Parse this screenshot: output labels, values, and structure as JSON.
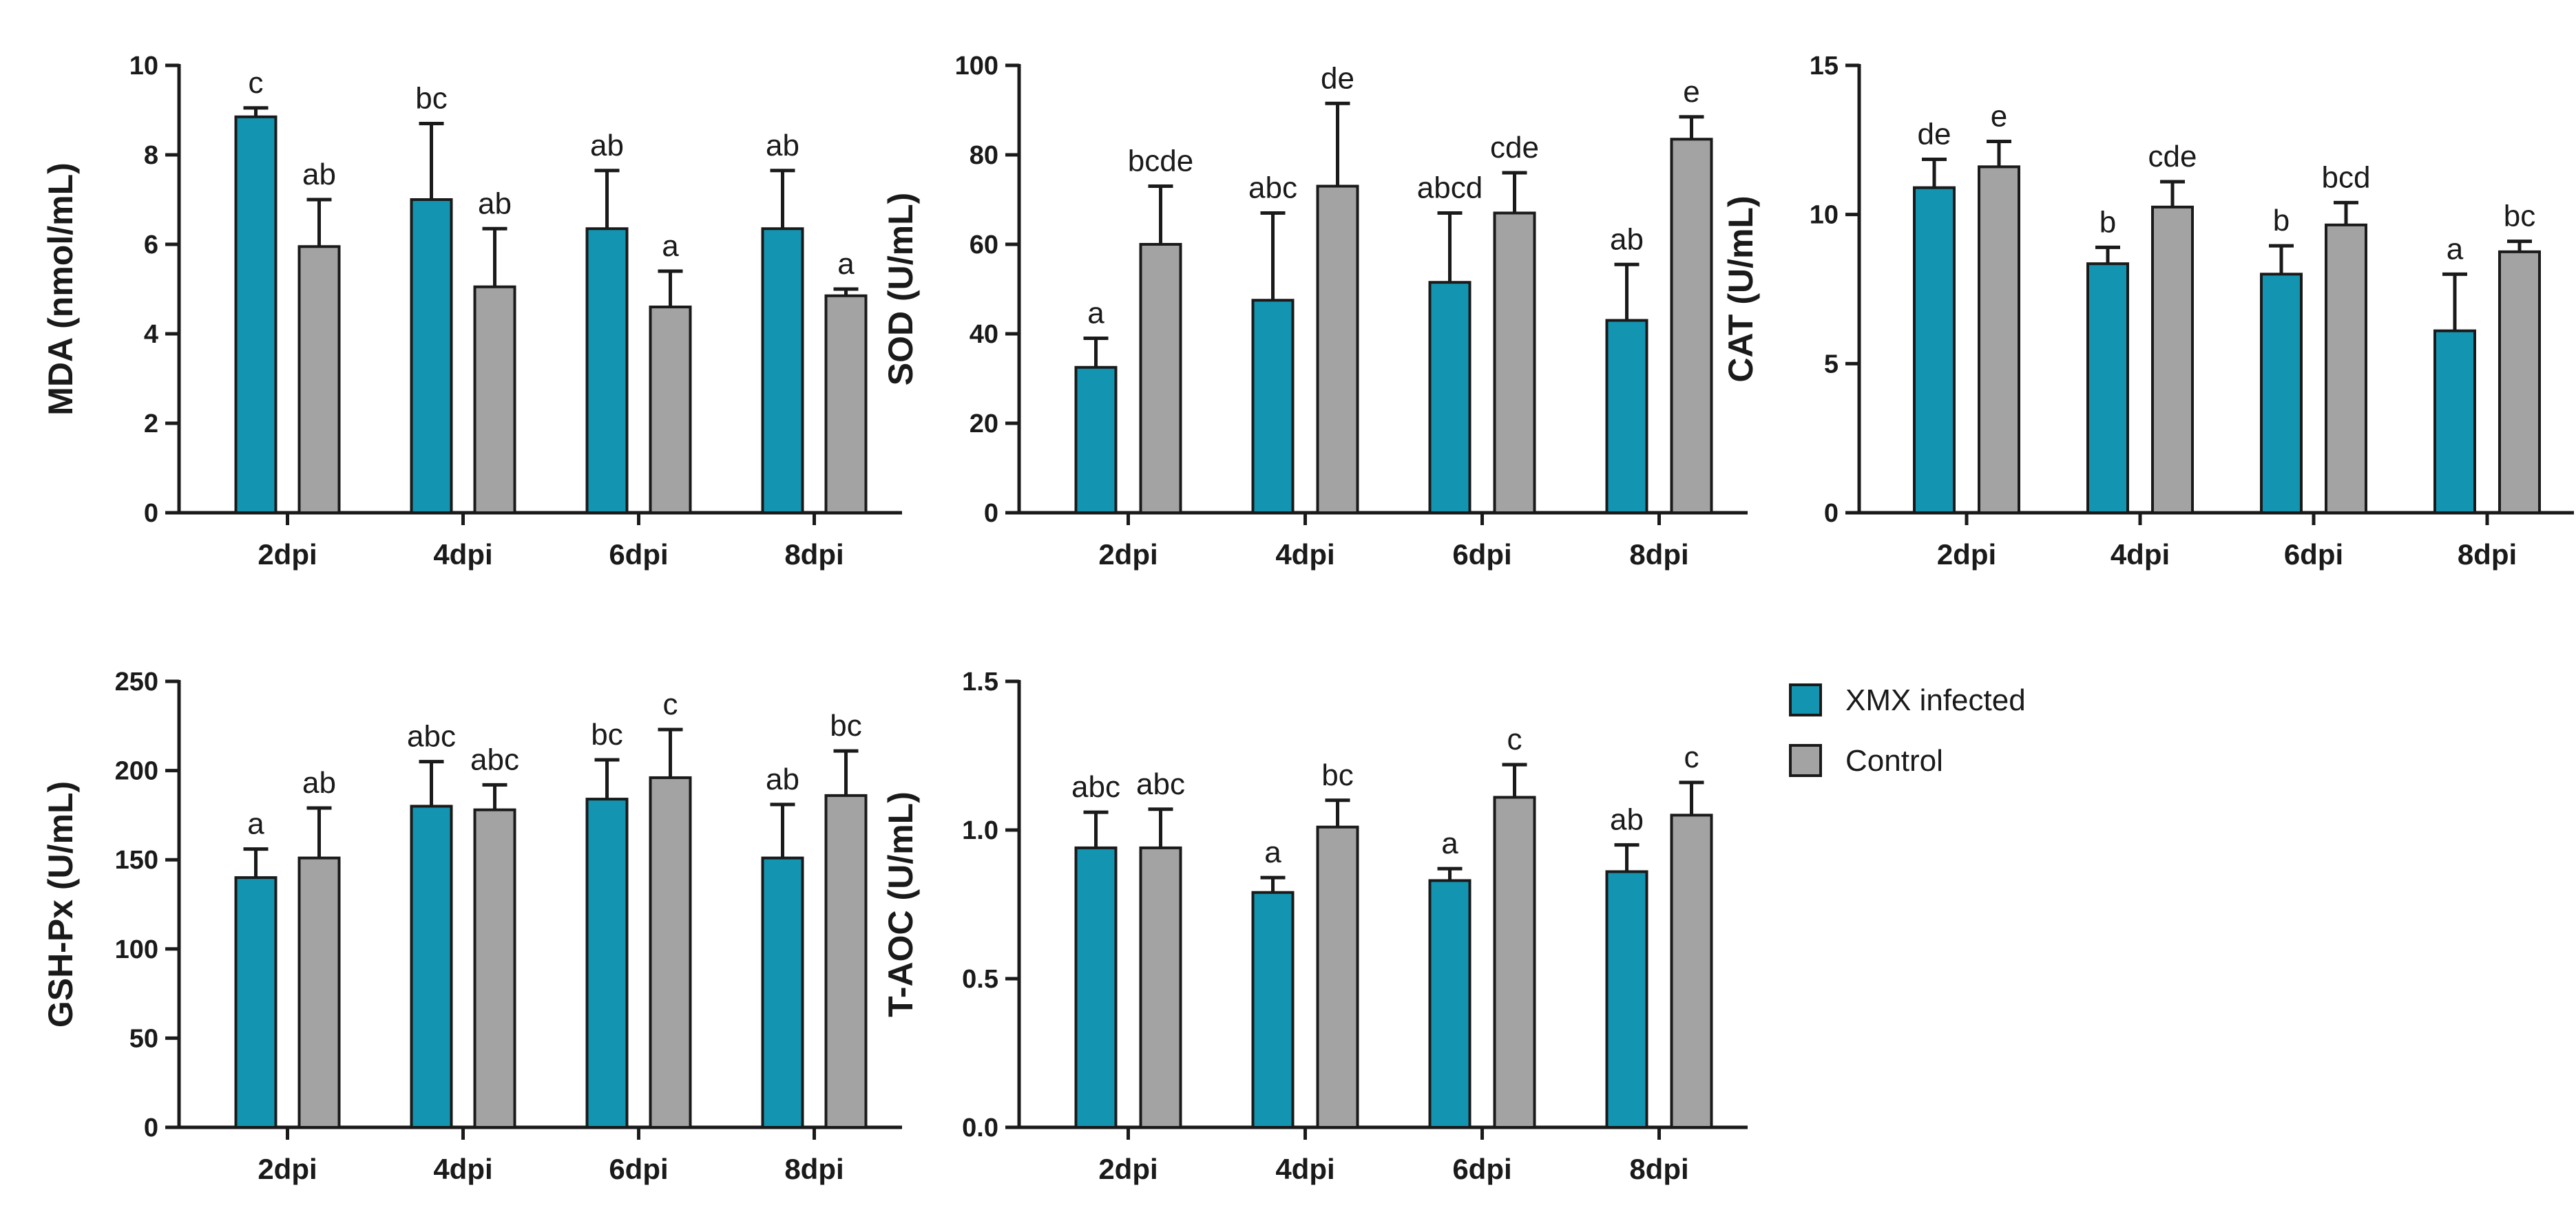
{
  "figure": {
    "legend": {
      "entries": [
        {
          "label": "XMX infected",
          "color": "#1395b2"
        },
        {
          "label": "Control",
          "color": "#a3a3a3"
        }
      ],
      "position": "right"
    }
  },
  "chart_data": [
    {
      "type": "bar",
      "title": "",
      "ylabel": "MDA (nmol/mL)",
      "categories": [
        "2dpi",
        "4dpi",
        "6dpi",
        "8dpi"
      ],
      "ylim": [
        0,
        10
      ],
      "yticks": [
        0,
        2,
        4,
        6,
        8,
        10
      ],
      "ytick_labels": [
        "0",
        "2",
        "4",
        "6",
        "8",
        "10"
      ],
      "series": [
        {
          "name": "XMX infected",
          "color": "#1395b2",
          "values": [
            8.85,
            7.0,
            6.35,
            6.35
          ],
          "errors": [
            0.2,
            1.7,
            1.3,
            1.3
          ],
          "labels": [
            "c",
            "bc",
            "ab",
            "ab"
          ]
        },
        {
          "name": "Control",
          "color": "#a3a3a3",
          "values": [
            5.95,
            5.05,
            4.6,
            4.85
          ],
          "errors": [
            1.05,
            1.3,
            0.8,
            0.15
          ],
          "labels": [
            "ab",
            "ab",
            "a",
            "a"
          ]
        }
      ]
    },
    {
      "type": "bar",
      "title": "",
      "ylabel": "SOD (U/mL)",
      "categories": [
        "2dpi",
        "4dpi",
        "6dpi",
        "8dpi"
      ],
      "ylim": [
        0,
        100
      ],
      "yticks": [
        0,
        20,
        40,
        60,
        80,
        100
      ],
      "ytick_labels": [
        "0",
        "20",
        "40",
        "60",
        "80",
        "100"
      ],
      "series": [
        {
          "name": "XMX infected",
          "color": "#1395b2",
          "values": [
            32.5,
            47.5,
            51.5,
            43.0
          ],
          "errors": [
            6.5,
            19.5,
            15.5,
            12.5
          ],
          "labels": [
            "a",
            "abc",
            "abcd",
            "ab"
          ]
        },
        {
          "name": "Control",
          "color": "#a3a3a3",
          "values": [
            60.0,
            73.0,
            67.0,
            83.5
          ],
          "errors": [
            13.0,
            18.5,
            9.0,
            5.0
          ],
          "labels": [
            "bcde",
            "de",
            "cde",
            "e"
          ]
        }
      ]
    },
    {
      "type": "bar",
      "title": "",
      "ylabel": "CAT (U/mL)",
      "categories": [
        "2dpi",
        "4dpi",
        "6dpi",
        "8dpi"
      ],
      "ylim": [
        0,
        15
      ],
      "yticks": [
        0,
        5,
        10,
        15
      ],
      "ytick_labels": [
        "0",
        "5",
        "10",
        "15"
      ],
      "series": [
        {
          "name": "XMX infected",
          "color": "#1395b2",
          "values": [
            10.9,
            8.35,
            8.0,
            6.1
          ],
          "errors": [
            0.95,
            0.55,
            0.95,
            1.9
          ],
          "labels": [
            "de",
            "b",
            "b",
            "a"
          ]
        },
        {
          "name": "Control",
          "color": "#a3a3a3",
          "values": [
            11.6,
            10.25,
            9.65,
            8.75
          ],
          "errors": [
            0.85,
            0.85,
            0.75,
            0.35
          ],
          "labels": [
            "e",
            "cde",
            "bcd",
            "bc"
          ]
        }
      ]
    },
    {
      "type": "bar",
      "title": "",
      "ylabel": "GSH-Px (U/mL)",
      "categories": [
        "2dpi",
        "4dpi",
        "6dpi",
        "8dpi"
      ],
      "ylim": [
        0,
        250
      ],
      "yticks": [
        0,
        50,
        100,
        150,
        200,
        250
      ],
      "ytick_labels": [
        "0",
        "50",
        "100",
        "150",
        "200",
        "250"
      ],
      "series": [
        {
          "name": "XMX infected",
          "color": "#1395b2",
          "values": [
            140,
            180,
            184,
            151
          ],
          "errors": [
            16,
            25,
            22,
            30
          ],
          "labels": [
            "a",
            "abc",
            "bc",
            "ab"
          ]
        },
        {
          "name": "Control",
          "color": "#a3a3a3",
          "values": [
            151,
            178,
            196,
            186
          ],
          "errors": [
            28,
            14,
            27,
            25
          ],
          "labels": [
            "ab",
            "abc",
            "c",
            "bc"
          ]
        }
      ]
    },
    {
      "type": "bar",
      "title": "",
      "ylabel": "T-AOC (U/mL)",
      "categories": [
        "2dpi",
        "4dpi",
        "6dpi",
        "8dpi"
      ],
      "ylim": [
        0,
        1.5
      ],
      "yticks": [
        0,
        0.5,
        1.0,
        1.5
      ],
      "ytick_labels": [
        "0.0",
        "0.5",
        "1.0",
        "1.5"
      ],
      "series": [
        {
          "name": "XMX infected",
          "color": "#1395b2",
          "values": [
            0.94,
            0.79,
            0.83,
            0.86
          ],
          "errors": [
            0.12,
            0.05,
            0.04,
            0.09
          ],
          "labels": [
            "abc",
            "a",
            "a",
            "ab"
          ]
        },
        {
          "name": "Control",
          "color": "#a3a3a3",
          "values": [
            0.94,
            1.01,
            1.11,
            1.05
          ],
          "errors": [
            0.13,
            0.09,
            0.11,
            0.11
          ],
          "labels": [
            "abc",
            "bc",
            "c",
            "c"
          ]
        }
      ]
    }
  ]
}
